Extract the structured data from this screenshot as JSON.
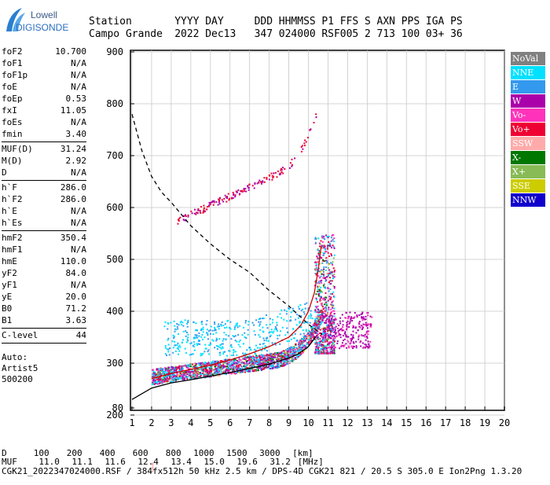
{
  "logo": {
    "line1": "Lowell",
    "line2": "DIGISONDE"
  },
  "header": {
    "labels": [
      "Station",
      "YYYY",
      "DAY",
      "DDD",
      "HHMMSS",
      "P1",
      "FFS",
      "S",
      "AXN",
      "PPS",
      "IGA",
      "PS"
    ],
    "values": [
      "Campo Grande",
      "2022",
      "Dec13",
      "347",
      "024000",
      "RSF",
      "005",
      "2",
      "713",
      "100",
      "03+",
      "36"
    ]
  },
  "params": {
    "group1": [
      {
        "name": "foF2",
        "value": "10.700"
      },
      {
        "name": "foF1",
        "value": "N/A"
      },
      {
        "name": "foF1p",
        "value": "N/A"
      },
      {
        "name": "foE",
        "value": "N/A"
      },
      {
        "name": "foEp",
        "value": "0.53"
      },
      {
        "name": "fxI",
        "value": "11.05"
      },
      {
        "name": "foEs",
        "value": "N/A"
      },
      {
        "name": "fmin",
        "value": "3.40"
      }
    ],
    "group2": [
      {
        "name": "MUF(D)",
        "value": "31.24"
      },
      {
        "name": "M(D)",
        "value": "2.92"
      },
      {
        "name": "D",
        "value": "N/A"
      }
    ],
    "group3": [
      {
        "name": "h`F",
        "value": "286.0"
      },
      {
        "name": "h`F2",
        "value": "286.0"
      },
      {
        "name": "h`E",
        "value": "N/A"
      },
      {
        "name": "h`Es",
        "value": "N/A"
      }
    ],
    "group4": [
      {
        "name": "hmF2",
        "value": "350.4"
      },
      {
        "name": "hmF1",
        "value": "N/A"
      },
      {
        "name": "hmE",
        "value": "110.0"
      },
      {
        "name": "yF2",
        "value": "84.0"
      },
      {
        "name": "yF1",
        "value": "N/A"
      },
      {
        "name": "yE",
        "value": "20.0"
      },
      {
        "name": "B0",
        "value": "71.2"
      },
      {
        "name": "B1",
        "value": "3.63"
      }
    ],
    "group5": [
      {
        "name": "C-level",
        "value": "44"
      }
    ],
    "auto": [
      "Auto:",
      "Artist5",
      "500200"
    ]
  },
  "legend": [
    {
      "label": "NoVal",
      "bg": "#808080",
      "fg": "#ffffff"
    },
    {
      "label": "NNE",
      "bg": "#00e0ff",
      "fg": "#ffffff"
    },
    {
      "label": "E",
      "bg": "#3399ee",
      "fg": "#ffffff"
    },
    {
      "label": "W",
      "bg": "#aa00aa",
      "fg": "#ffffff"
    },
    {
      "label": "Vo-",
      "bg": "#ff33bb",
      "fg": "#ffffff"
    },
    {
      "label": "Vo+",
      "bg": "#ee0033",
      "fg": "#ffffff"
    },
    {
      "label": "SSW",
      "bg": "#ffaaaa",
      "fg": "#ffffff"
    },
    {
      "label": "X-",
      "bg": "#007700",
      "fg": "#ffffff"
    },
    {
      "label": "X+",
      "bg": "#88bb55",
      "fg": "#ffffff"
    },
    {
      "label": "SSE",
      "bg": "#cccc00",
      "fg": "#ffffff"
    },
    {
      "label": "NNW",
      "bg": "#1100cc",
      "fg": "#ffffff"
    }
  ],
  "chart_data": {
    "type": "scatter",
    "title": "",
    "xlabel": "",
    "ylabel": "",
    "x_unit": "MHz",
    "y_unit": "km",
    "xlim": [
      1,
      20
    ],
    "ylim": [
      80,
      900
    ],
    "x_ticks": [
      "1",
      "2",
      "3",
      "4",
      "5",
      "6",
      "7",
      "8",
      "9",
      "10",
      "11",
      "12",
      "13",
      "14",
      "15",
      "16",
      "17",
      "18",
      "19",
      "20"
    ],
    "y_ticks": [
      "900",
      "800",
      "700",
      "600",
      "500",
      "400",
      "300",
      "200",
      "80"
    ],
    "y_tick_values": [
      900,
      800,
      700,
      600,
      500,
      400,
      300,
      200,
      80
    ],
    "grid": true,
    "legend_placement": "right",
    "series": [
      {
        "color": "#000000",
        "style": "solid",
        "points": [
          [
            1,
            230
          ],
          [
            2,
            252
          ],
          [
            3,
            262
          ],
          [
            4,
            268
          ],
          [
            5,
            275
          ],
          [
            6,
            282
          ],
          [
            7,
            290
          ],
          [
            8,
            298
          ],
          [
            9,
            310
          ],
          [
            9.5,
            318
          ],
          [
            10,
            332
          ],
          [
            10.4,
            352
          ]
        ]
      },
      {
        "color": "#000000",
        "style": "dashed",
        "points": [
          [
            1,
            780
          ],
          [
            1.5,
            710
          ],
          [
            2,
            660
          ],
          [
            2.5,
            630
          ],
          [
            3,
            610
          ],
          [
            4,
            565
          ],
          [
            5,
            530
          ],
          [
            6,
            500
          ],
          [
            7,
            475
          ],
          [
            8,
            440
          ],
          [
            9,
            410
          ],
          [
            10,
            375
          ],
          [
            10.7,
            355
          ]
        ]
      },
      {
        "color": "#cc0000",
        "style": "solid",
        "points": [
          [
            2,
            270
          ],
          [
            3,
            280
          ],
          [
            4,
            288
          ],
          [
            5,
            296
          ],
          [
            6,
            306
          ],
          [
            7,
            318
          ],
          [
            8,
            332
          ],
          [
            9,
            350
          ],
          [
            9.6,
            372
          ],
          [
            10,
            400
          ],
          [
            10.3,
            435
          ],
          [
            10.5,
            480
          ],
          [
            10.65,
            525
          ]
        ]
      }
    ]
  },
  "footer": {
    "d_label": "D",
    "d_values": [
      "100",
      "200",
      "400",
      "600",
      "800",
      "1000",
      "1500",
      "3000",
      "[km]"
    ],
    "muf_label": "MUF",
    "muf_values": [
      "11.0",
      "11.1",
      "11.6",
      "12.4",
      "13.4",
      "15.0",
      "19.6",
      "31.2",
      "[MHz]"
    ],
    "info": "CGK21_2022347024000.RSF / 384fx512h 50 kHz 2.5 km / DPS-4D CGK21 821 / 20.5 S 305.0 E Ion2Png 1.3.20"
  }
}
